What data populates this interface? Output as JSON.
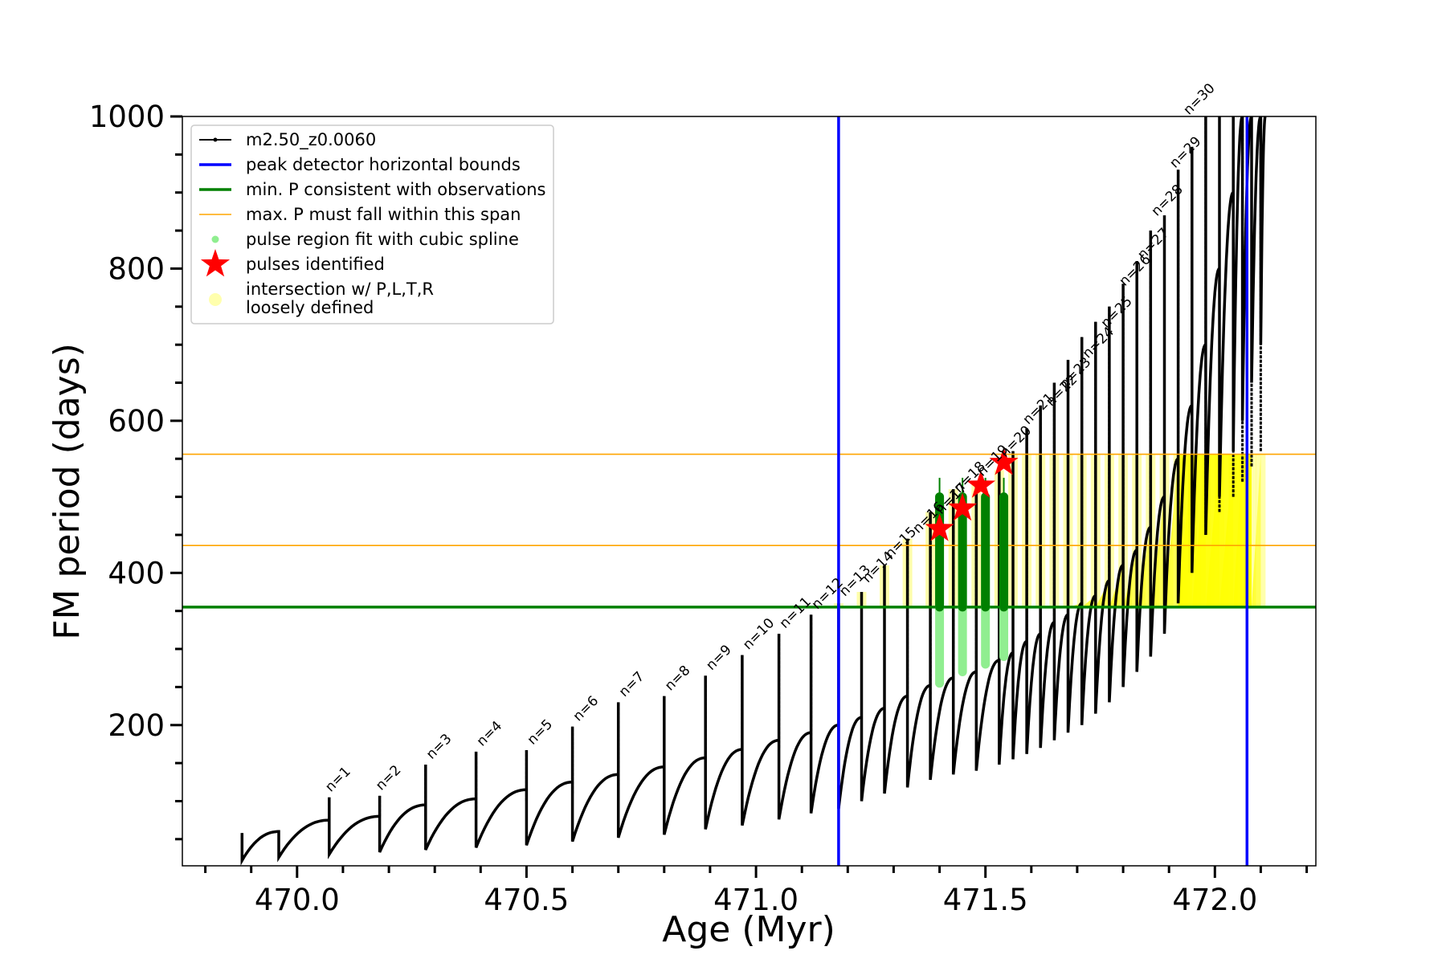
{
  "chart_data": {
    "type": "scatter",
    "title": "",
    "xlabel": "Age (Myr)",
    "ylabel": "FM period (days)",
    "xlim": [
      469.75,
      472.22
    ],
    "ylim": [
      15,
      1000
    ],
    "x_ticks": [
      470.0,
      470.5,
      471.0,
      471.5,
      472.0
    ],
    "x_tick_labels": [
      "470.0",
      "470.5",
      "471.0",
      "471.5",
      "472.0"
    ],
    "y_ticks": [
      200,
      400,
      600,
      800,
      1000
    ],
    "y_tick_labels": [
      "200",
      "400",
      "600",
      "800",
      "1000"
    ],
    "grid": false,
    "legend_position": "upper-left",
    "legend": [
      {
        "label": "m2.50_z0.0060",
        "marker": "line-dot",
        "color": "#000000"
      },
      {
        "label": "peak detector horizontal bounds",
        "marker": "line",
        "color": "#0000ff"
      },
      {
        "label": "min. P consistent with observations",
        "marker": "line",
        "color": "#008000"
      },
      {
        "label": "max. P must fall within this span",
        "marker": "thin-line",
        "color": "#ffa500"
      },
      {
        "label": "pulse region fit with cubic spline",
        "marker": "dot",
        "color": "#90ee90"
      },
      {
        "label": "pulses identified",
        "marker": "star",
        "color": "#ff0000"
      },
      {
        "label": "intersection w/ P,L,T,R",
        "label2": "loosely defined",
        "marker": "big-dot",
        "color": "#ffff99"
      }
    ],
    "reference_lines": {
      "vertical_bounds": [
        471.18,
        472.07
      ],
      "min_period": 355,
      "max_period_span": [
        436,
        556
      ]
    },
    "series": [
      {
        "name": "m2.50_z0.0060",
        "color": "#000000",
        "pulse_ages": [
          469.88,
          469.96,
          470.07,
          470.18,
          470.28,
          470.39,
          470.5,
          470.6,
          470.7,
          470.8,
          470.89,
          470.97,
          471.05,
          471.12,
          471.18,
          471.23,
          471.28,
          471.33,
          471.38,
          471.43,
          471.48,
          471.53,
          471.56,
          471.59,
          471.62,
          471.65,
          471.68,
          471.71,
          471.74,
          471.77,
          471.8,
          471.83,
          471.86,
          471.89,
          471.92,
          471.95,
          471.98,
          472.01,
          472.04,
          472.06,
          472.08,
          472.1
        ],
        "pulse_peak_periods": [
          58,
          62,
          105,
          107,
          148,
          165,
          167,
          198,
          230,
          238,
          265,
          292,
          320,
          345,
          360,
          375,
          410,
          445,
          480,
          510,
          520,
          535,
          560,
          590,
          620,
          650,
          680,
          710,
          730,
          750,
          780,
          810,
          850,
          870,
          930,
          960,
          1000,
          1000,
          1000,
          1000,
          1000,
          1000
        ],
        "pulse_minimum_periods": [
          22,
          26,
          30,
          33,
          36,
          39,
          42,
          47,
          52,
          56,
          63,
          68,
          76,
          84,
          90,
          100,
          110,
          118,
          128,
          135,
          140,
          148,
          155,
          162,
          170,
          180,
          190,
          200,
          215,
          230,
          250,
          270,
          290,
          320,
          360,
          400,
          450,
          500,
          560,
          600,
          650,
          700
        ],
        "interpulse_max_periods": [
          60,
          75,
          80,
          95,
          103,
          115,
          125,
          135,
          145,
          157,
          168,
          180,
          190,
          200,
          210,
          222,
          238,
          252,
          262,
          270,
          285,
          295,
          310,
          320,
          335,
          345,
          360,
          370,
          390,
          410,
          430,
          460,
          500,
          550,
          620,
          700,
          800,
          900,
          1000,
          1000,
          1000,
          1000
        ]
      },
      {
        "name": "pulse region fit with cubic spline",
        "color": "#90ee90",
        "ages": [
          471.4,
          471.45,
          471.5,
          471.54
        ],
        "period_ranges": [
          [
            255,
            500
          ],
          [
            270,
            500
          ],
          [
            280,
            500
          ],
          [
            290,
            500
          ]
        ]
      },
      {
        "name": "pulses identified",
        "color": "#ff0000",
        "x": [
          471.4,
          471.45,
          471.49,
          471.54
        ],
        "y": [
          458,
          485,
          515,
          545
        ]
      }
    ],
    "pulse_labels": [
      {
        "text": "n=1",
        "x": 470.07,
        "y": 105
      },
      {
        "text": "n=2",
        "x": 470.18,
        "y": 107
      },
      {
        "text": "n=3",
        "x": 470.29,
        "y": 148
      },
      {
        "text": "n=4",
        "x": 470.4,
        "y": 165
      },
      {
        "text": "n=5",
        "x": 470.51,
        "y": 167
      },
      {
        "text": "n=6",
        "x": 470.61,
        "y": 198
      },
      {
        "text": "n=7",
        "x": 470.71,
        "y": 230
      },
      {
        "text": "n=8",
        "x": 470.81,
        "y": 238
      },
      {
        "text": "n=9",
        "x": 470.9,
        "y": 265
      },
      {
        "text": "n=10",
        "x": 470.98,
        "y": 292
      },
      {
        "text": "n=11",
        "x": 471.06,
        "y": 320
      },
      {
        "text": "n=12",
        "x": 471.13,
        "y": 345
      },
      {
        "text": "n=13",
        "x": 471.19,
        "y": 362
      },
      {
        "text": "n=14",
        "x": 471.24,
        "y": 380
      },
      {
        "text": "n=15",
        "x": 471.29,
        "y": 412
      },
      {
        "text": "n=16",
        "x": 471.35,
        "y": 445
      },
      {
        "text": "n=17",
        "x": 471.4,
        "y": 470
      },
      {
        "text": "n=18",
        "x": 471.44,
        "y": 498
      },
      {
        "text": "n=19",
        "x": 471.49,
        "y": 520
      },
      {
        "text": "n=20",
        "x": 471.54,
        "y": 545
      },
      {
        "text": "n=21",
        "x": 471.59,
        "y": 588
      },
      {
        "text": "n=22",
        "x": 471.64,
        "y": 612
      },
      {
        "text": "n=23",
        "x": 471.67,
        "y": 635
      },
      {
        "text": "n=24",
        "x": 471.72,
        "y": 675
      },
      {
        "text": "n=25",
        "x": 471.76,
        "y": 715
      },
      {
        "text": "n=26",
        "x": 471.8,
        "y": 770
      },
      {
        "text": "n=27",
        "x": 471.84,
        "y": 805
      },
      {
        "text": "n=28",
        "x": 471.87,
        "y": 862
      },
      {
        "text": "n=29",
        "x": 471.91,
        "y": 925
      },
      {
        "text": "n=30",
        "x": 471.94,
        "y": 995
      }
    ]
  }
}
